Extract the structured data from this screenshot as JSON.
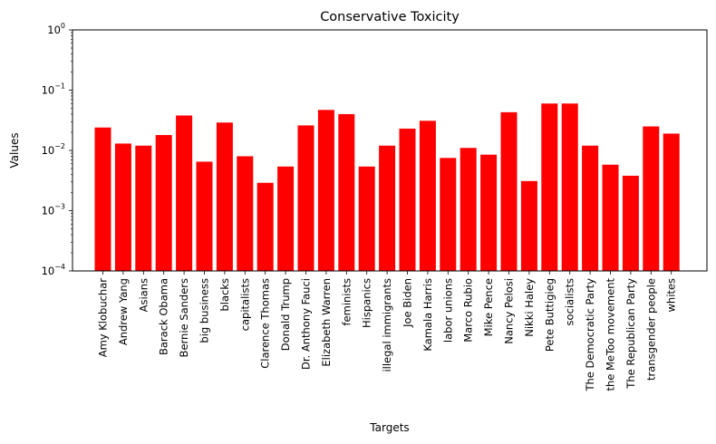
{
  "chart_data": {
    "type": "bar",
    "title": "Conservative Toxicity",
    "xlabel": "Targets",
    "ylabel": "Values",
    "yscale": "log",
    "ylim": [
      0.0001,
      1
    ],
    "grid": false,
    "bar_color": "#ff0000",
    "categories": [
      "Amy Klobuchar",
      "Andrew Yang",
      "Asians",
      "Barack Obama",
      "Bernie Sanders",
      "big business",
      "blacks",
      "capitalists",
      "Clarence Thomas",
      "Donald Trump",
      "Dr. Anthony Fauci",
      "Elizabeth Warren",
      "feminists",
      "Hispanics",
      "illegal immigrants",
      "Joe Biden",
      "Kamala Harris",
      "labor unions",
      "Marco Rubio",
      "Mike Pence",
      "Nancy Pelosi",
      "Nikki Haley",
      "Pete Buttigieg",
      "socialists",
      "The Democratic Party",
      "the MeToo movement",
      "The Republican Party",
      "transgender people",
      "whites"
    ],
    "values": [
      0.024,
      0.013,
      0.012,
      0.018,
      0.038,
      0.0065,
      0.029,
      0.008,
      0.0029,
      0.0054,
      0.026,
      0.047,
      0.04,
      0.0054,
      0.012,
      0.023,
      0.031,
      0.0075,
      0.011,
      0.0085,
      0.043,
      0.0031,
      0.06,
      0.06,
      0.012,
      0.0058,
      0.0038,
      0.025,
      0.019
    ],
    "yticks": [
      {
        "value": 0.0001,
        "base": "10",
        "exp": "−4"
      },
      {
        "value": 0.001,
        "base": "10",
        "exp": "−3"
      },
      {
        "value": 0.01,
        "base": "10",
        "exp": "−2"
      },
      {
        "value": 0.1,
        "base": "10",
        "exp": "−1"
      },
      {
        "value": 1,
        "base": "10",
        "exp": "0"
      }
    ]
  }
}
